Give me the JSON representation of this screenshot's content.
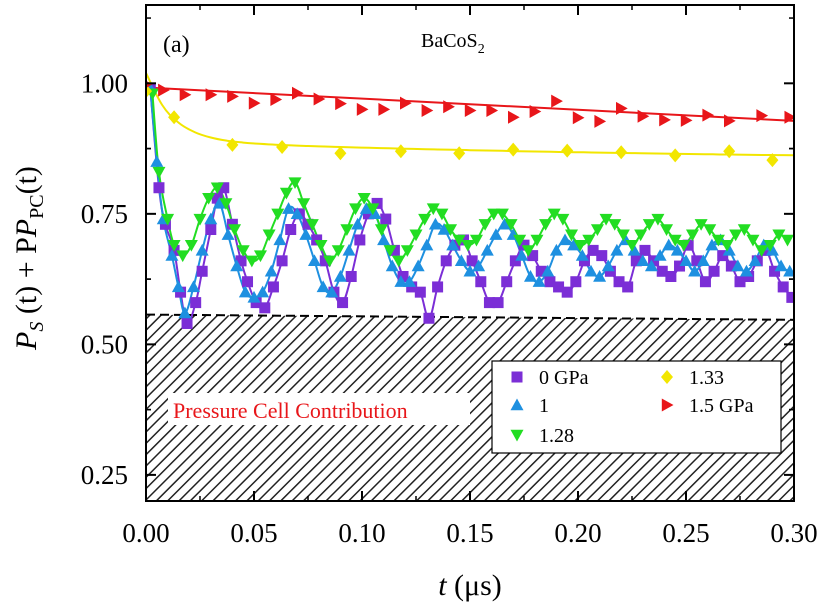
{
  "chart_data": {
    "type": "scatter",
    "panel_label": "(a)",
    "title_base": "BaCoS",
    "title_subscript": "2",
    "xlabel_var": "t",
    "xlabel_unit": " (μs)",
    "ylabel_main": "P",
    "ylabel_sub_s": "S",
    "ylabel_mid": " (t) + P",
    "ylabel_sub_pc": "PC",
    "ylabel_end": "(t)",
    "xlim": [
      0.0,
      0.3
    ],
    "ylim": [
      0.2,
      1.15
    ],
    "xticks": [
      "0.00",
      "0.05",
      "0.10",
      "0.15",
      "0.20",
      "0.25",
      "0.30"
    ],
    "yticks": [
      "0.25",
      "0.50",
      "0.75",
      "1.00"
    ],
    "pressure_cell_label": "Pressure Cell Contribution",
    "pressure_cell_boundary": [
      [
        0.0,
        0.557
      ],
      [
        0.3,
        0.547
      ]
    ],
    "colors": {
      "0 GPa": "#7b2ed6",
      "1": "#1e90e0",
      "1.28": "#22dd22",
      "1.33": "#f2e600",
      "1.5 GPa": "#e8161a",
      "pressure_cell_text": "#e8161a"
    },
    "series": [
      {
        "name": "0 GPa",
        "marker": "square",
        "color": "#7b2ed6",
        "points": [
          [
            0.002,
            0.99
          ],
          [
            0.006,
            0.8
          ],
          [
            0.009,
            0.73
          ],
          [
            0.013,
            0.68
          ],
          [
            0.016,
            0.6
          ],
          [
            0.019,
            0.54
          ],
          [
            0.023,
            0.58
          ],
          [
            0.026,
            0.64
          ],
          [
            0.03,
            0.72
          ],
          [
            0.033,
            0.78
          ],
          [
            0.036,
            0.8
          ],
          [
            0.04,
            0.73
          ],
          [
            0.044,
            0.66
          ],
          [
            0.047,
            0.62
          ],
          [
            0.051,
            0.58
          ],
          [
            0.055,
            0.57
          ],
          [
            0.059,
            0.61
          ],
          [
            0.063,
            0.66
          ],
          [
            0.067,
            0.72
          ],
          [
            0.071,
            0.75
          ],
          [
            0.075,
            0.73
          ],
          [
            0.079,
            0.7
          ],
          [
            0.083,
            0.66
          ],
          [
            0.087,
            0.6
          ],
          [
            0.091,
            0.58
          ],
          [
            0.095,
            0.63
          ],
          [
            0.099,
            0.7
          ],
          [
            0.103,
            0.75
          ],
          [
            0.107,
            0.77
          ],
          [
            0.111,
            0.74
          ],
          [
            0.115,
            0.68
          ],
          [
            0.119,
            0.63
          ],
          [
            0.123,
            0.61
          ],
          [
            0.127,
            0.6
          ],
          [
            0.131,
            0.55
          ],
          [
            0.135,
            0.61
          ],
          [
            0.139,
            0.66
          ],
          [
            0.143,
            0.69
          ],
          [
            0.147,
            0.7
          ],
          [
            0.151,
            0.66
          ],
          [
            0.155,
            0.62
          ],
          [
            0.159,
            0.58
          ],
          [
            0.163,
            0.58
          ],
          [
            0.167,
            0.62
          ],
          [
            0.171,
            0.66
          ],
          [
            0.175,
            0.69
          ],
          [
            0.179,
            0.67
          ],
          [
            0.183,
            0.64
          ],
          [
            0.187,
            0.62
          ],
          [
            0.191,
            0.61
          ],
          [
            0.195,
            0.6
          ],
          [
            0.199,
            0.62
          ],
          [
            0.203,
            0.66
          ],
          [
            0.207,
            0.68
          ],
          [
            0.211,
            0.67
          ],
          [
            0.215,
            0.64
          ],
          [
            0.219,
            0.62
          ],
          [
            0.223,
            0.61
          ],
          [
            0.227,
            0.66
          ],
          [
            0.231,
            0.68
          ],
          [
            0.235,
            0.66
          ],
          [
            0.239,
            0.64
          ],
          [
            0.243,
            0.63
          ],
          [
            0.247,
            0.65
          ],
          [
            0.251,
            0.69
          ],
          [
            0.255,
            0.66
          ],
          [
            0.259,
            0.62
          ],
          [
            0.263,
            0.64
          ],
          [
            0.267,
            0.67
          ],
          [
            0.271,
            0.65
          ],
          [
            0.275,
            0.62
          ],
          [
            0.279,
            0.63
          ],
          [
            0.283,
            0.66
          ],
          [
            0.287,
            0.68
          ],
          [
            0.291,
            0.64
          ],
          [
            0.295,
            0.61
          ],
          [
            0.299,
            0.59
          ]
        ]
      },
      {
        "name": "1",
        "marker": "triangle-up",
        "color": "#1e90e0",
        "points": [
          [
            0.002,
            0.99
          ],
          [
            0.005,
            0.85
          ],
          [
            0.008,
            0.74
          ],
          [
            0.012,
            0.67
          ],
          [
            0.015,
            0.61
          ],
          [
            0.018,
            0.56
          ],
          [
            0.022,
            0.61
          ],
          [
            0.026,
            0.68
          ],
          [
            0.03,
            0.74
          ],
          [
            0.034,
            0.77
          ],
          [
            0.038,
            0.71
          ],
          [
            0.042,
            0.65
          ],
          [
            0.046,
            0.6
          ],
          [
            0.05,
            0.59
          ],
          [
            0.054,
            0.6
          ],
          [
            0.058,
            0.64
          ],
          [
            0.062,
            0.7
          ],
          [
            0.066,
            0.76
          ],
          [
            0.07,
            0.75
          ],
          [
            0.074,
            0.71
          ],
          [
            0.078,
            0.66
          ],
          [
            0.082,
            0.61
          ],
          [
            0.086,
            0.6
          ],
          [
            0.09,
            0.63
          ],
          [
            0.094,
            0.68
          ],
          [
            0.098,
            0.73
          ],
          [
            0.102,
            0.76
          ],
          [
            0.106,
            0.75
          ],
          [
            0.11,
            0.7
          ],
          [
            0.114,
            0.65
          ],
          [
            0.118,
            0.62
          ],
          [
            0.122,
            0.62
          ],
          [
            0.126,
            0.65
          ],
          [
            0.13,
            0.69
          ],
          [
            0.134,
            0.73
          ],
          [
            0.138,
            0.72
          ],
          [
            0.142,
            0.69
          ],
          [
            0.146,
            0.66
          ],
          [
            0.15,
            0.64
          ],
          [
            0.154,
            0.65
          ],
          [
            0.158,
            0.68
          ],
          [
            0.162,
            0.71
          ],
          [
            0.166,
            0.73
          ],
          [
            0.17,
            0.71
          ],
          [
            0.174,
            0.67
          ],
          [
            0.178,
            0.63
          ],
          [
            0.182,
            0.62
          ],
          [
            0.186,
            0.64
          ],
          [
            0.19,
            0.68
          ],
          [
            0.194,
            0.7
          ],
          [
            0.198,
            0.69
          ],
          [
            0.202,
            0.67
          ],
          [
            0.206,
            0.64
          ],
          [
            0.21,
            0.63
          ],
          [
            0.214,
            0.65
          ],
          [
            0.218,
            0.68
          ],
          [
            0.222,
            0.7
          ],
          [
            0.226,
            0.68
          ],
          [
            0.23,
            0.66
          ],
          [
            0.234,
            0.65
          ],
          [
            0.238,
            0.67
          ],
          [
            0.242,
            0.69
          ],
          [
            0.246,
            0.68
          ],
          [
            0.25,
            0.66
          ],
          [
            0.254,
            0.64
          ],
          [
            0.258,
            0.66
          ],
          [
            0.262,
            0.69
          ],
          [
            0.266,
            0.7
          ],
          [
            0.27,
            0.68
          ],
          [
            0.274,
            0.65
          ],
          [
            0.278,
            0.64
          ],
          [
            0.282,
            0.66
          ],
          [
            0.286,
            0.69
          ],
          [
            0.29,
            0.68
          ],
          [
            0.294,
            0.65
          ],
          [
            0.298,
            0.64
          ]
        ]
      },
      {
        "name": "1.28",
        "marker": "triangle-down",
        "color": "#22dd22",
        "points": [
          [
            0.003,
            0.98
          ],
          [
            0.006,
            0.83
          ],
          [
            0.01,
            0.74
          ],
          [
            0.013,
            0.69
          ],
          [
            0.017,
            0.67
          ],
          [
            0.021,
            0.69
          ],
          [
            0.025,
            0.74
          ],
          [
            0.029,
            0.78
          ],
          [
            0.033,
            0.8
          ],
          [
            0.037,
            0.77
          ],
          [
            0.041,
            0.72
          ],
          [
            0.045,
            0.68
          ],
          [
            0.049,
            0.66
          ],
          [
            0.053,
            0.67
          ],
          [
            0.057,
            0.71
          ],
          [
            0.061,
            0.75
          ],
          [
            0.065,
            0.79
          ],
          [
            0.069,
            0.81
          ],
          [
            0.073,
            0.77
          ],
          [
            0.077,
            0.73
          ],
          [
            0.081,
            0.69
          ],
          [
            0.085,
            0.66
          ],
          [
            0.089,
            0.68
          ],
          [
            0.093,
            0.72
          ],
          [
            0.097,
            0.76
          ],
          [
            0.101,
            0.78
          ],
          [
            0.105,
            0.76
          ],
          [
            0.109,
            0.72
          ],
          [
            0.113,
            0.68
          ],
          [
            0.117,
            0.66
          ],
          [
            0.121,
            0.68
          ],
          [
            0.125,
            0.71
          ],
          [
            0.129,
            0.74
          ],
          [
            0.133,
            0.76
          ],
          [
            0.137,
            0.75
          ],
          [
            0.141,
            0.72
          ],
          [
            0.145,
            0.7
          ],
          [
            0.149,
            0.69
          ],
          [
            0.153,
            0.7
          ],
          [
            0.157,
            0.73
          ],
          [
            0.161,
            0.75
          ],
          [
            0.165,
            0.75
          ],
          [
            0.169,
            0.73
          ],
          [
            0.173,
            0.7
          ],
          [
            0.177,
            0.68
          ],
          [
            0.181,
            0.7
          ],
          [
            0.185,
            0.73
          ],
          [
            0.189,
            0.75
          ],
          [
            0.193,
            0.74
          ],
          [
            0.197,
            0.71
          ],
          [
            0.201,
            0.69
          ],
          [
            0.205,
            0.7
          ],
          [
            0.209,
            0.72
          ],
          [
            0.213,
            0.74
          ],
          [
            0.217,
            0.73
          ],
          [
            0.221,
            0.71
          ],
          [
            0.225,
            0.69
          ],
          [
            0.229,
            0.71
          ],
          [
            0.233,
            0.73
          ],
          [
            0.237,
            0.74
          ],
          [
            0.241,
            0.72
          ],
          [
            0.245,
            0.7
          ],
          [
            0.249,
            0.69
          ],
          [
            0.253,
            0.71
          ],
          [
            0.257,
            0.73
          ],
          [
            0.261,
            0.72
          ],
          [
            0.265,
            0.7
          ],
          [
            0.269,
            0.69
          ],
          [
            0.273,
            0.71
          ],
          [
            0.277,
            0.72
          ],
          [
            0.281,
            0.7
          ],
          [
            0.285,
            0.68
          ],
          [
            0.289,
            0.69
          ],
          [
            0.293,
            0.71
          ],
          [
            0.297,
            0.7
          ]
        ]
      },
      {
        "name": "1.33",
        "marker": "diamond",
        "color": "#f2e600",
        "points": [
          [
            0.0,
            0.985
          ],
          [
            0.013,
            0.935
          ],
          [
            0.04,
            0.882
          ],
          [
            0.063,
            0.878
          ],
          [
            0.09,
            0.866
          ],
          [
            0.118,
            0.87
          ],
          [
            0.145,
            0.866
          ],
          [
            0.17,
            0.873
          ],
          [
            0.195,
            0.871
          ],
          [
            0.22,
            0.868
          ],
          [
            0.245,
            0.862
          ],
          [
            0.27,
            0.87
          ],
          [
            0.29,
            0.853
          ]
        ]
      },
      {
        "name": "1.5 GPa",
        "marker": "triangle-right",
        "color": "#e8161a",
        "points": [
          [
            0.0,
            0.998
          ],
          [
            0.008,
            0.987
          ],
          [
            0.018,
            0.978
          ],
          [
            0.03,
            0.978
          ],
          [
            0.04,
            0.975
          ],
          [
            0.05,
            0.962
          ],
          [
            0.06,
            0.969
          ],
          [
            0.07,
            0.981
          ],
          [
            0.08,
            0.97
          ],
          [
            0.09,
            0.961
          ],
          [
            0.1,
            0.95
          ],
          [
            0.11,
            0.95
          ],
          [
            0.12,
            0.962
          ],
          [
            0.13,
            0.948
          ],
          [
            0.14,
            0.955
          ],
          [
            0.15,
            0.948
          ],
          [
            0.16,
            0.948
          ],
          [
            0.17,
            0.935
          ],
          [
            0.18,
            0.946
          ],
          [
            0.19,
            0.966
          ],
          [
            0.2,
            0.934
          ],
          [
            0.21,
            0.927
          ],
          [
            0.22,
            0.952
          ],
          [
            0.23,
            0.937
          ],
          [
            0.24,
            0.93
          ],
          [
            0.25,
            0.929
          ],
          [
            0.26,
            0.939
          ],
          [
            0.27,
            0.928
          ],
          [
            0.285,
            0.938
          ],
          [
            0.298,
            0.935
          ]
        ]
      }
    ],
    "legend": [
      {
        "label": "0 GPa",
        "marker": "square",
        "color": "#7b2ed6"
      },
      {
        "label": "1.33",
        "marker": "diamond",
        "color": "#f2e600"
      },
      {
        "label": "1",
        "marker": "triangle-up",
        "color": "#1e90e0"
      },
      {
        "label": "1.5 GPa",
        "marker": "triangle-right",
        "color": "#e8161a"
      },
      {
        "label": "1.28",
        "marker": "triangle-down",
        "color": "#22dd22"
      }
    ],
    "legend_placement": "bottom-right",
    "grid": false
  }
}
